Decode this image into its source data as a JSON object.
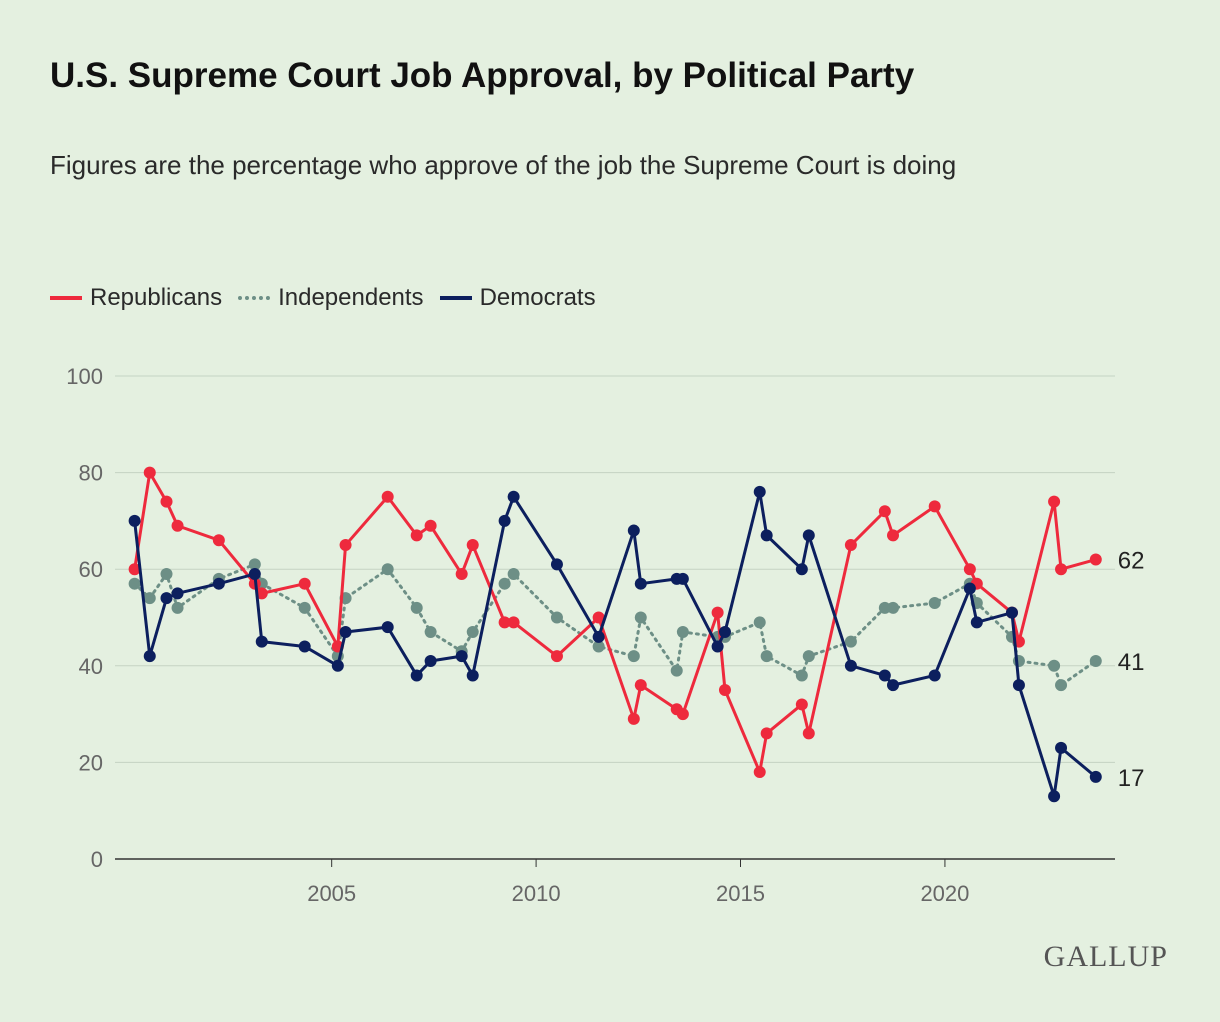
{
  "chart_data": {
    "type": "line",
    "title": "U.S. Supreme Court Job Approval, by Political Party",
    "subtitle": "Figures are the percentage who approve of the job the Supreme Court is doing",
    "xlabel": "",
    "ylabel": "",
    "xlim": [
      1999.7,
      2024.16
    ],
    "ylim": [
      0,
      100
    ],
    "yticks": [
      0,
      20,
      40,
      60,
      80,
      100
    ],
    "xticks": [
      2005,
      2010,
      2015,
      2020
    ],
    "grid": true,
    "legend_position": "top-left",
    "x": [
      2000.18,
      2000.55,
      2000.96,
      2001.23,
      2002.24,
      2003.12,
      2003.29,
      2004.34,
      2005.15,
      2005.34,
      2006.37,
      2007.08,
      2007.42,
      2008.18,
      2008.45,
      2009.23,
      2009.45,
      2010.51,
      2011.53,
      2012.39,
      2012.56,
      2013.44,
      2013.59,
      2014.44,
      2014.62,
      2015.47,
      2015.64,
      2016.5,
      2016.67,
      2017.7,
      2018.53,
      2018.73,
      2019.75,
      2020.61,
      2020.78,
      2021.64,
      2021.81,
      2022.67,
      2022.84,
      2023.69
    ],
    "series": [
      {
        "name": "Republicans",
        "color": "#ee2a3d",
        "style": "solid",
        "end_label": "62",
        "values": [
          60,
          80,
          74,
          69,
          66,
          57,
          55,
          57,
          44,
          65,
          75,
          67,
          69,
          59,
          65,
          49,
          49,
          42,
          50,
          29,
          36,
          31,
          30,
          51,
          35,
          18,
          26,
          32,
          26,
          65,
          72,
          67,
          73,
          60,
          57,
          51,
          45,
          74,
          60,
          62
        ]
      },
      {
        "name": "Independents",
        "color": "#6d8f86",
        "style": "dotted",
        "end_label": "41",
        "values": [
          57,
          54,
          59,
          52,
          58,
          61,
          57,
          52,
          42,
          54,
          60,
          52,
          47,
          43,
          47,
          57,
          59,
          50,
          44,
          42,
          50,
          39,
          47,
          46,
          46,
          49,
          42,
          38,
          42,
          45,
          52,
          52,
          53,
          57,
          53,
          46,
          41,
          40,
          36,
          41
        ]
      },
      {
        "name": "Democrats",
        "color": "#0c1f5e",
        "style": "solid",
        "end_label": "17",
        "values": [
          70,
          42,
          54,
          55,
          57,
          59,
          45,
          44,
          40,
          47,
          48,
          38,
          41,
          42,
          38,
          70,
          75,
          61,
          46,
          68,
          57,
          58,
          58,
          44,
          47,
          76,
          67,
          60,
          67,
          40,
          38,
          36,
          38,
          56,
          49,
          51,
          36,
          13,
          23,
          17
        ]
      }
    ]
  },
  "brand": "GALLUP"
}
